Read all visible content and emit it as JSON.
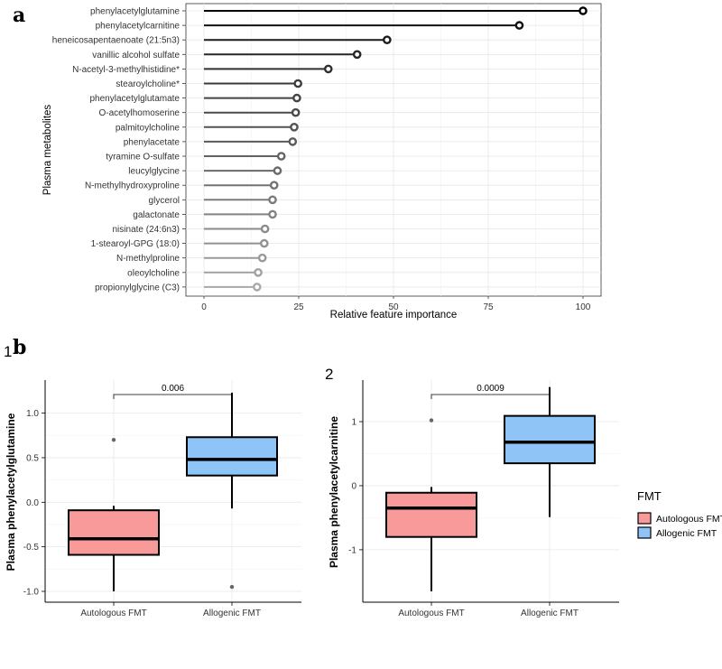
{
  "panel_a_label": "a",
  "panel_b_label": "b",
  "chart_data": [
    {
      "type": "lollipop",
      "id": "a",
      "xlabel": "Relative feature importance",
      "ylabel": "Plasma metabolites",
      "xlim": [
        0,
        100
      ],
      "xticks": [
        0,
        25,
        50,
        75,
        100
      ],
      "categories": [
        "phenylacetylglutamine",
        "phenylacetylcarnitine",
        "heneicosapentaenoate (21:5n3)",
        "vanillic alcohol sulfate",
        "N-acetyl-3-methylhistidine*",
        "stearoylcholine*",
        "phenylacetylglutamate",
        "O-acetylhomoserine",
        "palmitoylcholine",
        "phenylacetate",
        "tyramine O-sulfate",
        "leucylglycine",
        "N-methylhydroxyproline",
        "glycerol",
        "galactonate",
        "nisinate (24:6n3)",
        "1-stearoyl-GPG (18:0)",
        "N-methylproline",
        "oleoylcholine",
        "propionylglycine (C3)"
      ],
      "values": [
        100,
        83.2,
        48.3,
        40.4,
        32.8,
        24.8,
        24.5,
        24.2,
        23.8,
        23.4,
        20.4,
        19.4,
        18.5,
        18.1,
        18.1,
        16.1,
        15.9,
        15.4,
        14.3,
        14.0
      ],
      "colors": [
        "#000000",
        "#111111",
        "#1c1c1c",
        "#262626",
        "#2f2f2f",
        "#3a3a3a",
        "#434343",
        "#4a4a4a",
        "#525252",
        "#5a5a5a",
        "#626262",
        "#6a6a6a",
        "#737373",
        "#7b7b7b",
        "#828282",
        "#8a8a8a",
        "#919191",
        "#999999",
        "#a1a1a1",
        "#a8a8a8"
      ]
    },
    {
      "type": "boxplot",
      "id": "b1",
      "panel_label": "1",
      "ylabel": "Plasma phenylacetylglutamine",
      "ylim": [
        -1.0,
        1.3
      ],
      "yticks": [
        "1.0",
        "0.5",
        "0.0",
        "-0.5",
        "-1.0"
      ],
      "ytick_values": [
        1.0,
        0.5,
        0.0,
        -0.5,
        -1.0
      ],
      "categories": [
        "Autologous FMT",
        "Allogenic FMT"
      ],
      "boxes": [
        {
          "min": -1.0,
          "q1": -0.59,
          "median": -0.41,
          "q3": -0.09,
          "max": -0.04,
          "outliers": [
            0.7
          ]
        },
        {
          "min": -0.07,
          "q1": 0.3,
          "median": 0.48,
          "q3": 0.73,
          "max": 1.23,
          "outliers": [
            -0.95
          ]
        }
      ],
      "p_value": "0.006"
    },
    {
      "type": "boxplot",
      "id": "b2",
      "panel_label": "2",
      "ylabel": "Plasma phenylacetylcarnitine",
      "ylim": [
        -1.65,
        1.55
      ],
      "yticks": [
        "1",
        "0",
        "-1"
      ],
      "ytick_values": [
        1,
        0,
        -1
      ],
      "categories": [
        "Autologous FMT",
        "Allogenic FMT"
      ],
      "boxes": [
        {
          "min": -1.65,
          "q1": -0.8,
          "median": -0.35,
          "q3": -0.11,
          "max": -0.02,
          "outliers": [
            1.02
          ]
        },
        {
          "min": -0.49,
          "q1": 0.35,
          "median": 0.68,
          "q3": 1.09,
          "max": 1.54,
          "outliers": []
        }
      ],
      "p_value": "0.0009"
    }
  ],
  "legend": {
    "title": "FMT",
    "items": [
      {
        "label": "Autologous FMT",
        "color": "#f8999a"
      },
      {
        "label": "Allogenic FMT",
        "color": "#8ec5f6"
      }
    ]
  }
}
